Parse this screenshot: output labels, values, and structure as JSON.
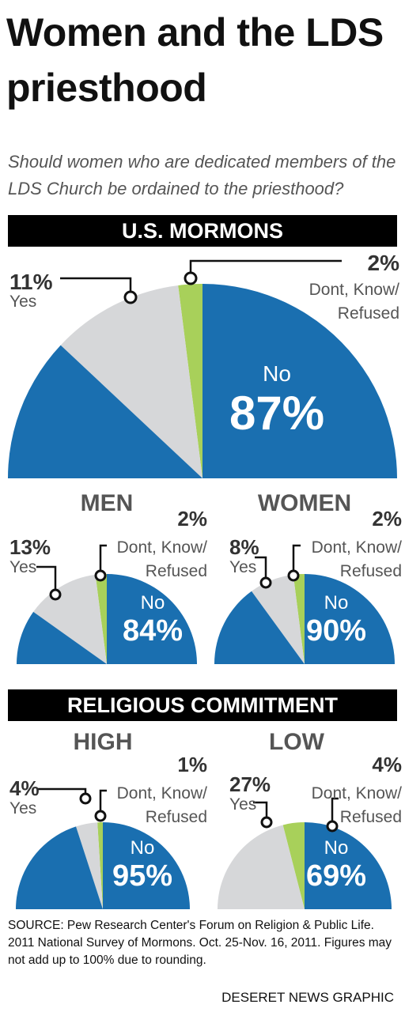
{
  "title": "Women and the LDS priesthood",
  "subtitle": "Should women who are dedicated members of the LDS Church be ordained to the priesthood?",
  "headers": [
    "U.S. MORMONS",
    "RELIGIOUS COMMITMENT"
  ],
  "chart_data": [
    {
      "type": "pie",
      "categories": [
        "No",
        "Yes",
        "Dont, Know/\nRefused"
      ],
      "values": [
        87,
        11,
        2
      ],
      "value_labels": [
        "87%",
        "11%",
        "2%"
      ],
      "colors": [
        "#1a6fb0",
        "#d6d7d9",
        "#a8d05a"
      ]
    },
    {
      "type": "pie",
      "title": "MEN",
      "categories": [
        "No",
        "Yes",
        "Dont, Know/\nRefused"
      ],
      "values": [
        84,
        13,
        2
      ],
      "value_labels": [
        "84%",
        "13%",
        "2%"
      ],
      "colors": [
        "#1a6fb0",
        "#d6d7d9",
        "#a8d05a"
      ]
    },
    {
      "type": "pie",
      "title": "WOMEN",
      "categories": [
        "No",
        "Yes",
        "Dont, Know/\nRefused"
      ],
      "values": [
        90,
        8,
        2
      ],
      "value_labels": [
        "90%",
        "8%",
        "2%"
      ],
      "colors": [
        "#1a6fb0",
        "#d6d7d9",
        "#a8d05a"
      ]
    },
    {
      "type": "pie",
      "title": "HIGH",
      "categories": [
        "No",
        "Yes",
        "Dont, Know/\nRefused"
      ],
      "values": [
        95,
        4,
        1
      ],
      "value_labels": [
        "95%",
        "4%",
        "1%"
      ],
      "colors": [
        "#1a6fb0",
        "#d6d7d9",
        "#a8d05a"
      ]
    },
    {
      "type": "pie",
      "title": "LOW",
      "categories": [
        "No",
        "Yes",
        "Dont, Know/\nRefused"
      ],
      "values": [
        69,
        27,
        4
      ],
      "value_labels": [
        "69%",
        "27%",
        "4%"
      ],
      "colors": [
        "#1a6fb0",
        "#d6d7d9",
        "#a8d05a"
      ]
    }
  ],
  "source": "SOURCE: Pew Research Center's Forum on Religion & Public Life. 2011 National Survey of Mormons. Oct. 25-Nov. 16, 2011. Figures may not add up to 100% due to rounding.",
  "credit": "DESERET NEWS GRAPHIC"
}
